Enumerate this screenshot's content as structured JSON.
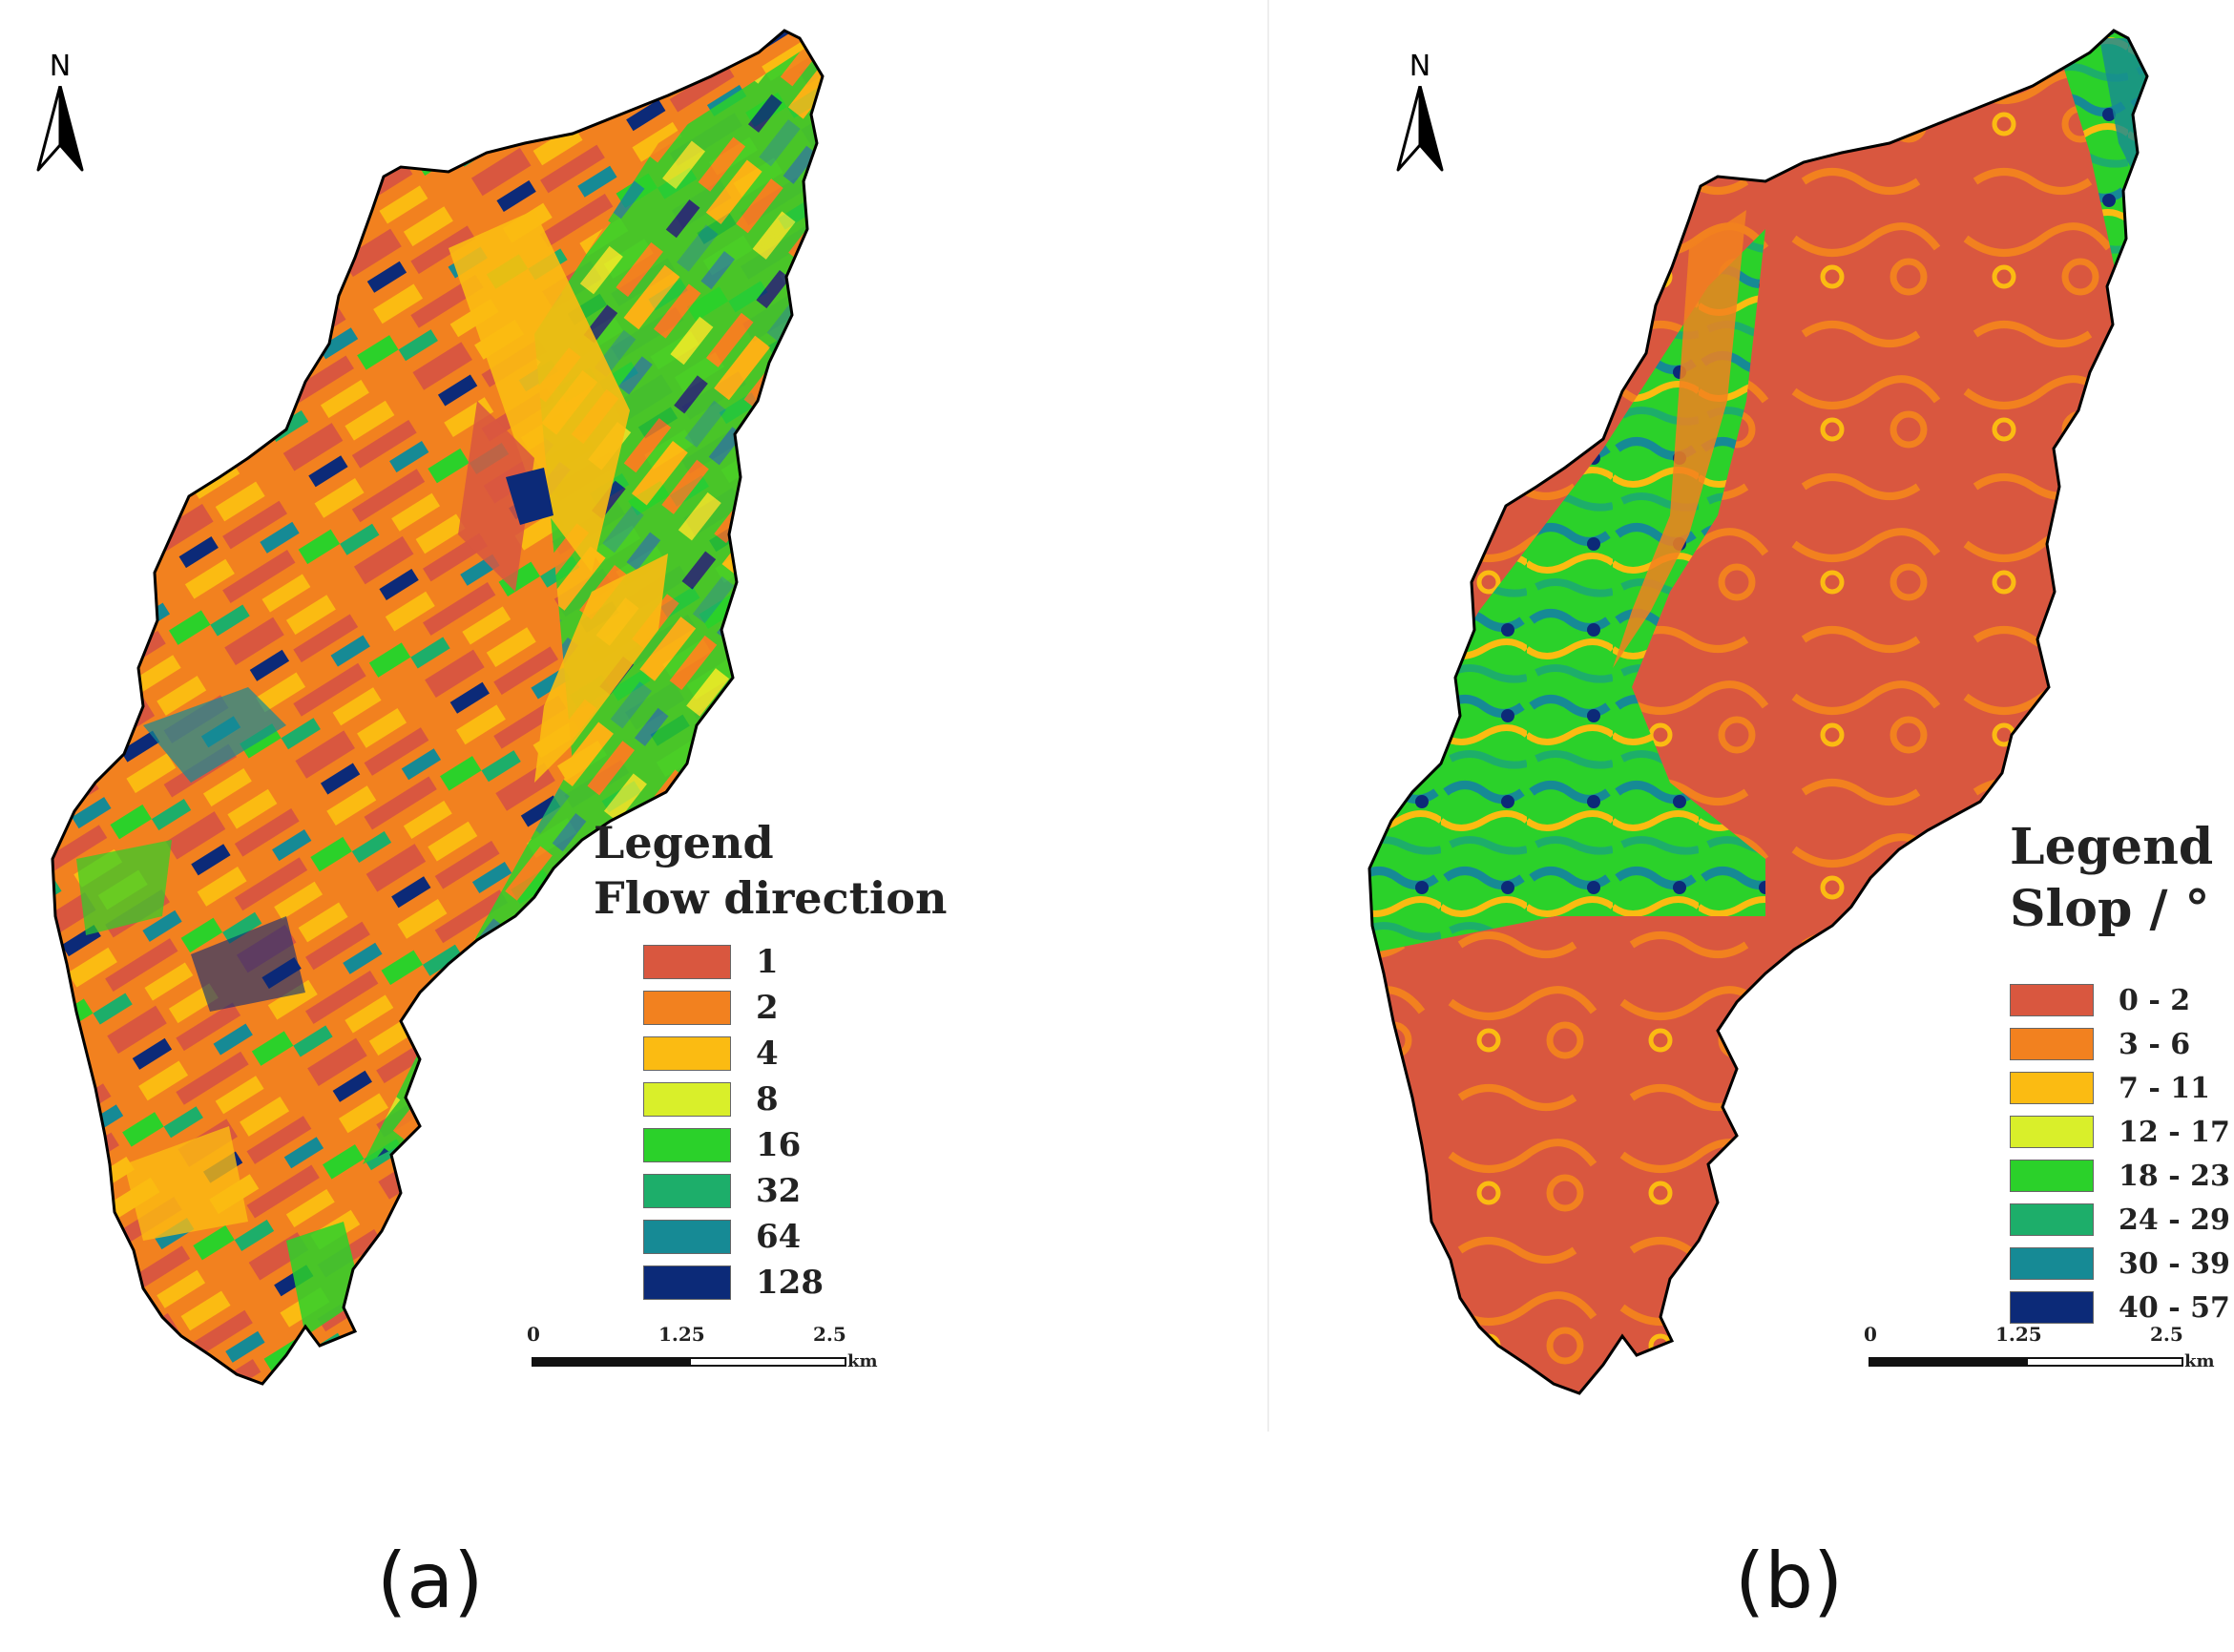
{
  "panel_a": {
    "caption": "(a)",
    "north": "N",
    "legend": {
      "title": "Legend",
      "subtitle": "Flow direction",
      "items": [
        {
          "label": "1",
          "color": "#d9573f"
        },
        {
          "label": "2",
          "color": "#f2811f"
        },
        {
          "label": "4",
          "color": "#fbbb12"
        },
        {
          "label": "8",
          "color": "#d9ef2a"
        },
        {
          "label": "16",
          "color": "#2bd12a"
        },
        {
          "label": "32",
          "color": "#1dae6a"
        },
        {
          "label": "64",
          "color": "#168a95"
        },
        {
          "label": "128",
          "color": "#0c2a78"
        }
      ]
    },
    "scale": {
      "ticks": [
        "0",
        "1.25",
        "2.5"
      ],
      "unit": "km"
    }
  },
  "panel_b": {
    "caption": "(b)",
    "north": "N",
    "legend": {
      "title": "Legend",
      "subtitle": "Slop / °",
      "items": [
        {
          "label": "0 - 2",
          "color": "#d9573f"
        },
        {
          "label": "3 - 6",
          "color": "#f2811f"
        },
        {
          "label": "7 - 11",
          "color": "#fbbb12"
        },
        {
          "label": "12 - 17",
          "color": "#d9ef2a"
        },
        {
          "label": "18 - 23",
          "color": "#2bd12a"
        },
        {
          "label": "24 - 29",
          "color": "#1dae6a"
        },
        {
          "label": "30 - 39",
          "color": "#168a95"
        },
        {
          "label": "40 - 57",
          "color": "#0c2a78"
        }
      ]
    },
    "scale": {
      "ticks": [
        "0",
        "1.25",
        "2.5"
      ],
      "unit": "km"
    }
  }
}
